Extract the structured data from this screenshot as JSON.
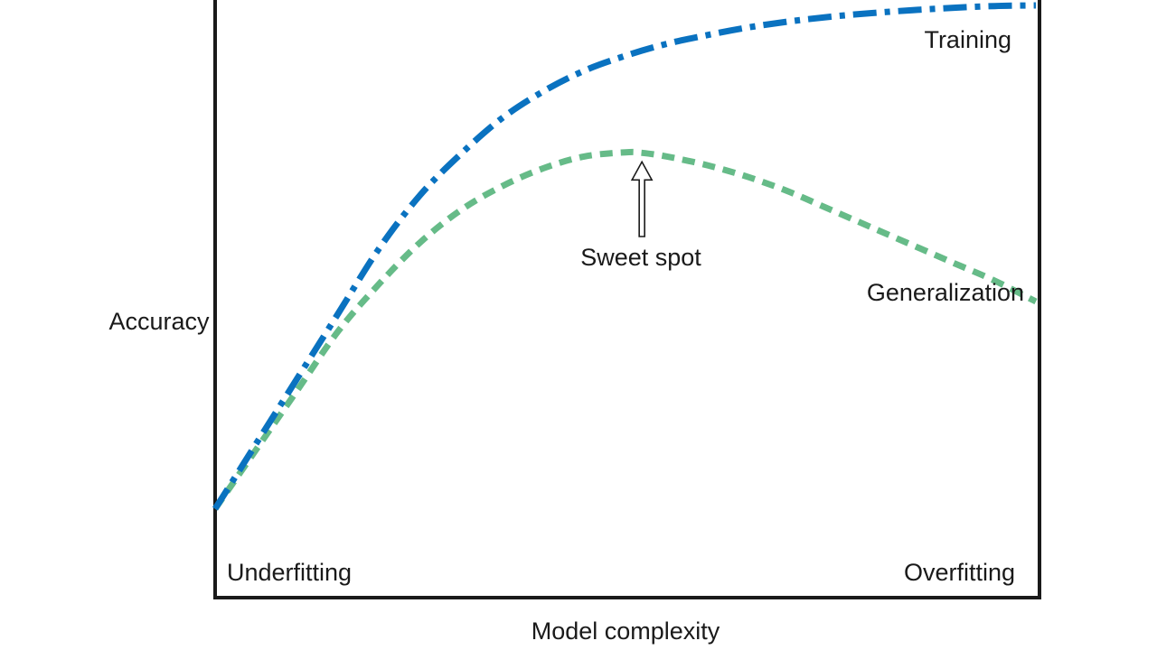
{
  "chart_data": {
    "type": "line",
    "title": "",
    "xlabel": "Model complexity",
    "ylabel": "Accuracy",
    "xlim": [
      0,
      1
    ],
    "ylim": [
      0,
      1
    ],
    "grid": false,
    "legend": "none",
    "series": [
      {
        "name": "Training",
        "color": "#0a72c0",
        "style": "dash-dot",
        "x": [
          0,
          0.05,
          0.1,
          0.15,
          0.2,
          0.25,
          0.3,
          0.35,
          0.4,
          0.45,
          0.5,
          0.55,
          0.6,
          0.65,
          0.7,
          0.75,
          0.8,
          0.85,
          0.9,
          0.95,
          1.0
        ],
        "y": [
          0.15,
          0.26,
          0.37,
          0.48,
          0.59,
          0.68,
          0.75,
          0.81,
          0.855,
          0.89,
          0.915,
          0.935,
          0.95,
          0.963,
          0.973,
          0.981,
          0.987,
          0.992,
          0.996,
          0.999,
          1.0
        ]
      },
      {
        "name": "Generalization",
        "color": "#66bb88",
        "style": "dashed",
        "x": [
          0,
          0.05,
          0.1,
          0.15,
          0.2,
          0.25,
          0.3,
          0.35,
          0.4,
          0.45,
          0.5,
          0.52,
          0.55,
          0.6,
          0.65,
          0.7,
          0.75,
          0.8,
          0.85,
          0.9,
          0.95,
          1.0
        ],
        "y": [
          0.15,
          0.25,
          0.35,
          0.45,
          0.53,
          0.6,
          0.655,
          0.695,
          0.725,
          0.745,
          0.752,
          0.751,
          0.745,
          0.73,
          0.71,
          0.685,
          0.655,
          0.625,
          0.595,
          0.565,
          0.535,
          0.5
        ]
      }
    ],
    "annotations": [
      {
        "text": "Sweet spot",
        "x": 0.52,
        "y": 0.745,
        "arrow": true
      },
      {
        "text": "Training"
      },
      {
        "text": "Generalization"
      },
      {
        "text": "Underfitting"
      },
      {
        "text": "Overfitting"
      }
    ]
  }
}
